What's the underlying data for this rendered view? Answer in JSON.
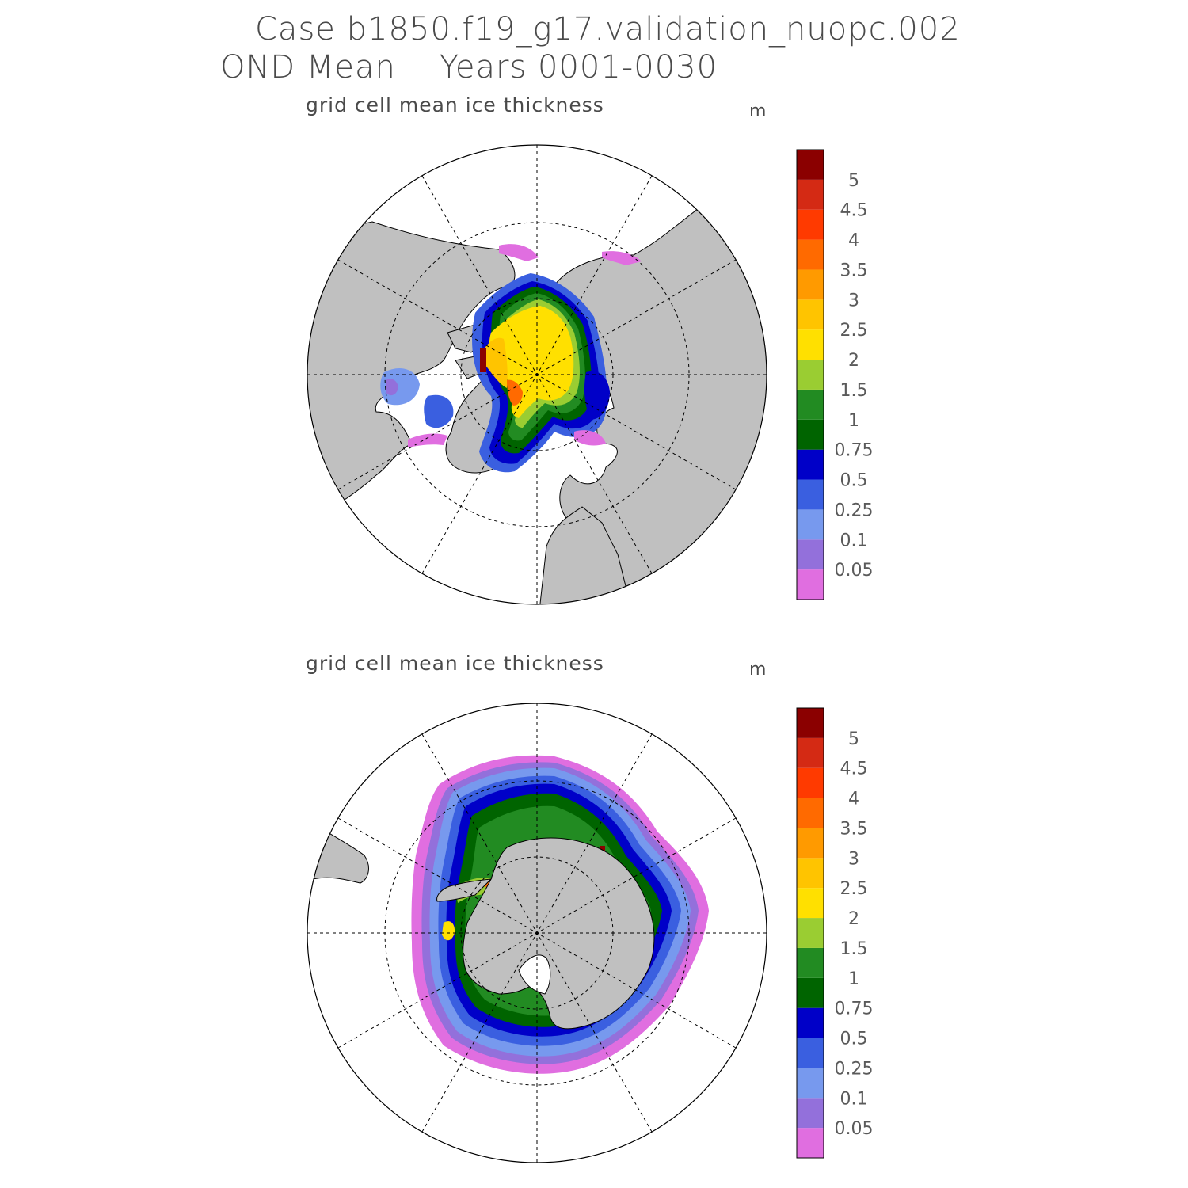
{
  "header": {
    "line1": "Case b1850.f19_g17.validation_nuopc.002",
    "line2": "OND Mean    Years 0001-0030"
  },
  "panels": [
    {
      "id": "north",
      "title": "grid cell mean ice thickness",
      "units": "m",
      "hemisphere": "Northern"
    },
    {
      "id": "south",
      "title": "grid cell mean ice thickness",
      "units": "m",
      "hemisphere": "Southern"
    }
  ],
  "colorbar": {
    "levels": [
      "0.05",
      "0.1",
      "0.25",
      "0.5",
      "0.75",
      "1",
      "1.5",
      "2",
      "2.5",
      "3",
      "3.5",
      "4",
      "4.5",
      "5"
    ],
    "colors": [
      "#e06ee0",
      "#9370db",
      "#7799ee",
      "#3a5fe0",
      "#0000c8",
      "#006400",
      "#228b22",
      "#9acd32",
      "#ffe000",
      "#ffc400",
      "#ff9a00",
      "#ff6a00",
      "#ff3a00",
      "#d42a14",
      "#8b0000"
    ]
  },
  "colors": {
    "land": "#c0c0c0",
    "ocean": "#ffffff",
    "text": "#4a4a4a"
  }
}
